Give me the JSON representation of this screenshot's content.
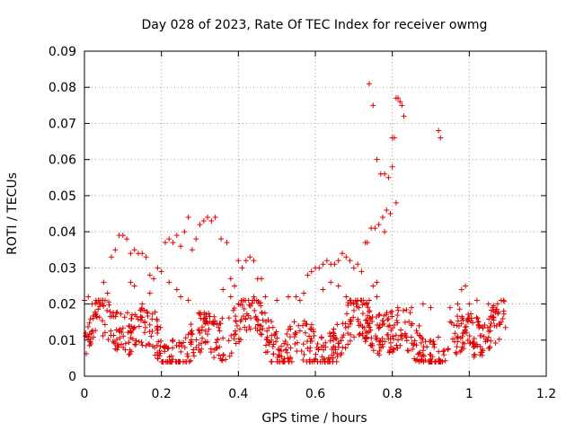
{
  "chart_data": {
    "type": "scatter",
    "title": "Day 028 of 2023, Rate Of TEC Index for receiver owmg",
    "xlabel": "GPS time / hours",
    "ylabel": "ROTI / TECUs",
    "xlim": [
      0,
      1.2
    ],
    "ylim": [
      0,
      0.09
    ],
    "x_ticks": [
      0,
      0.2,
      0.4,
      0.6,
      0.8,
      1,
      1.2
    ],
    "x_tick_labels": [
      "0",
      "0.2",
      "0.4",
      "0.6",
      "0.8",
      "1",
      "1.2"
    ],
    "y_ticks": [
      0,
      0.01,
      0.02,
      0.03,
      0.04,
      0.05,
      0.06,
      0.07,
      0.08,
      0.09
    ],
    "y_tick_labels": [
      "0",
      "0.01",
      "0.02",
      "0.03",
      "0.04",
      "0.05",
      "0.06",
      "0.07",
      "0.08",
      "0.09"
    ],
    "grid": true,
    "marker": "+",
    "marker_color": "#e00000",
    "series": [
      {
        "points": [
          [
            0.0,
            0.021
          ],
          [
            0.01,
            0.022
          ],
          [
            0.02,
            0.02
          ],
          [
            0.03,
            0.021
          ],
          [
            0.05,
            0.026
          ],
          [
            0.06,
            0.023
          ],
          [
            0.07,
            0.033
          ],
          [
            0.08,
            0.035
          ],
          [
            0.09,
            0.039
          ],
          [
            0.1,
            0.039
          ],
          [
            0.11,
            0.038
          ],
          [
            0.12,
            0.034
          ],
          [
            0.13,
            0.035
          ],
          [
            0.14,
            0.034
          ],
          [
            0.15,
            0.034
          ],
          [
            0.16,
            0.033
          ],
          [
            0.17,
            0.028
          ],
          [
            0.18,
            0.027
          ],
          [
            0.19,
            0.03
          ],
          [
            0.2,
            0.029
          ],
          [
            0.21,
            0.037
          ],
          [
            0.22,
            0.038
          ],
          [
            0.23,
            0.037
          ],
          [
            0.24,
            0.039
          ],
          [
            0.25,
            0.036
          ],
          [
            0.26,
            0.04
          ],
          [
            0.27,
            0.044
          ],
          [
            0.28,
            0.035
          ],
          [
            0.29,
            0.038
          ],
          [
            0.3,
            0.042
          ],
          [
            0.31,
            0.043
          ],
          [
            0.32,
            0.044
          ],
          [
            0.33,
            0.043
          ],
          [
            0.34,
            0.044
          ],
          [
            0.355,
            0.038
          ],
          [
            0.37,
            0.037
          ],
          [
            0.38,
            0.027
          ],
          [
            0.39,
            0.025
          ],
          [
            0.4,
            0.032
          ],
          [
            0.41,
            0.03
          ],
          [
            0.42,
            0.032
          ],
          [
            0.43,
            0.033
          ],
          [
            0.44,
            0.032
          ],
          [
            0.45,
            0.027
          ],
          [
            0.46,
            0.027
          ],
          [
            0.47,
            0.022
          ],
          [
            0.55,
            0.022
          ],
          [
            0.57,
            0.023
          ],
          [
            0.58,
            0.028
          ],
          [
            0.59,
            0.029
          ],
          [
            0.6,
            0.03
          ],
          [
            0.61,
            0.03
          ],
          [
            0.62,
            0.031
          ],
          [
            0.63,
            0.032
          ],
          [
            0.64,
            0.031
          ],
          [
            0.65,
            0.031
          ],
          [
            0.66,
            0.032
          ],
          [
            0.67,
            0.034
          ],
          [
            0.68,
            0.033
          ],
          [
            0.69,
            0.032
          ],
          [
            0.7,
            0.03
          ],
          [
            0.71,
            0.031
          ],
          [
            0.72,
            0.029
          ],
          [
            0.73,
            0.037
          ],
          [
            0.735,
            0.037
          ],
          [
            0.74,
            0.081
          ],
          [
            0.745,
            0.041
          ],
          [
            0.75,
            0.075
          ],
          [
            0.755,
            0.041
          ],
          [
            0.76,
            0.06
          ],
          [
            0.765,
            0.042
          ],
          [
            0.77,
            0.056
          ],
          [
            0.775,
            0.044
          ],
          [
            0.78,
            0.056
          ],
          [
            0.785,
            0.046
          ],
          [
            0.79,
            0.055
          ],
          [
            0.795,
            0.045
          ],
          [
            0.8,
            0.066
          ],
          [
            0.805,
            0.066
          ],
          [
            0.81,
            0.077
          ],
          [
            0.815,
            0.077
          ],
          [
            0.82,
            0.076
          ],
          [
            0.825,
            0.075
          ],
          [
            0.83,
            0.072
          ],
          [
            0.81,
            0.048
          ],
          [
            0.8,
            0.058
          ],
          [
            0.78,
            0.04
          ],
          [
            0.76,
            0.026
          ],
          [
            0.75,
            0.025
          ],
          [
            0.74,
            0.021
          ],
          [
            0.92,
            0.068
          ],
          [
            0.925,
            0.066
          ],
          [
            0.98,
            0.024
          ],
          [
            0.99,
            0.025
          ],
          [
            1.0,
            0.02
          ],
          [
            1.02,
            0.021
          ],
          [
            1.05,
            0.02
          ],
          [
            0.12,
            0.026
          ],
          [
            0.13,
            0.025
          ],
          [
            0.15,
            0.02
          ],
          [
            0.17,
            0.023
          ],
          [
            0.22,
            0.026
          ],
          [
            0.24,
            0.024
          ],
          [
            0.25,
            0.022
          ],
          [
            0.27,
            0.021
          ],
          [
            0.36,
            0.024
          ],
          [
            0.38,
            0.022
          ],
          [
            0.4,
            0.02
          ],
          [
            0.44,
            0.022
          ],
          [
            0.5,
            0.021
          ],
          [
            0.53,
            0.022
          ],
          [
            0.56,
            0.021
          ],
          [
            0.62,
            0.024
          ],
          [
            0.64,
            0.026
          ],
          [
            0.66,
            0.025
          ],
          [
            0.68,
            0.022
          ],
          [
            0.7,
            0.02
          ],
          [
            0.72,
            0.021
          ],
          [
            0.76,
            0.022
          ],
          [
            0.85,
            0.019
          ],
          [
            0.88,
            0.02
          ],
          [
            0.9,
            0.019
          ],
          [
            0.95,
            0.019
          ],
          [
            0.97,
            0.02
          ]
        ]
      }
    ]
  }
}
